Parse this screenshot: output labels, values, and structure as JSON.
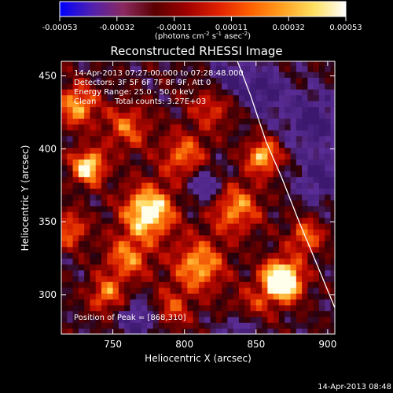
{
  "colorbar": {
    "ticks": [
      "-0.00053",
      "-0.00032",
      "-0.00011",
      "0.00011",
      "0.00032",
      "0.00053"
    ],
    "ticks_pre": "(photons cm",
    "ticks_sup1": "-2",
    "ticks_mid": " s",
    "ticks_sup2": "-1",
    "ticks_mid2": " asec",
    "ticks_sup3": "-2",
    "ticks_post": ")",
    "colors": [
      "#0000ff",
      "#5020b0",
      "#8a2a60",
      "#5a0000",
      "#a00000",
      "#e02000",
      "#ff6000",
      "#ffa020",
      "#ffe060",
      "#ffffff"
    ]
  },
  "chart_data": {
    "type": "heatmap",
    "title": "Reconstructed RHESSI Image",
    "xlabel": "Heliocentric X (arcsec)",
    "ylabel": "Heliocentric Y (arcsec)",
    "xlim": [
      714,
      905
    ],
    "ylim": [
      273,
      460
    ],
    "xticks": [
      "750",
      "800",
      "850",
      "900"
    ],
    "xtick_values": [
      750,
      800,
      850,
      900
    ],
    "yticks": [
      "300",
      "350",
      "400",
      "450"
    ],
    "ytick_values": [
      300,
      350,
      400,
      450
    ],
    "peak": [
      868,
      310
    ],
    "limb_curve": [
      [
        837,
        460
      ],
      [
        846,
        437
      ],
      [
        857,
        405
      ],
      [
        868,
        380
      ],
      [
        880,
        350
      ],
      [
        892,
        322
      ],
      [
        905,
        291
      ]
    ],
    "blobs": [
      {
        "x": 868,
        "y": 310,
        "r": 14,
        "v": 1.0
      },
      {
        "x": 775,
        "y": 357,
        "r": 18,
        "v": 0.75
      },
      {
        "x": 733,
        "y": 388,
        "r": 12,
        "v": 0.7
      },
      {
        "x": 725,
        "y": 430,
        "r": 14,
        "v": 0.55
      },
      {
        "x": 760,
        "y": 325,
        "r": 16,
        "v": 0.45
      },
      {
        "x": 810,
        "y": 320,
        "r": 18,
        "v": 0.55
      },
      {
        "x": 835,
        "y": 360,
        "r": 18,
        "v": 0.5
      },
      {
        "x": 855,
        "y": 395,
        "r": 12,
        "v": 0.6
      },
      {
        "x": 745,
        "y": 300,
        "r": 12,
        "v": 0.45
      },
      {
        "x": 800,
        "y": 395,
        "r": 16,
        "v": 0.45
      },
      {
        "x": 760,
        "y": 415,
        "r": 16,
        "v": 0.4
      },
      {
        "x": 820,
        "y": 430,
        "r": 16,
        "v": 0.35
      },
      {
        "x": 885,
        "y": 340,
        "r": 12,
        "v": 0.45
      },
      {
        "x": 790,
        "y": 290,
        "r": 14,
        "v": 0.35
      },
      {
        "x": 845,
        "y": 290,
        "r": 14,
        "v": 0.3
      },
      {
        "x": 720,
        "y": 345,
        "r": 12,
        "v": 0.45
      }
    ],
    "voids": [
      {
        "x": 770,
        "y": 283,
        "r": 14
      },
      {
        "x": 830,
        "y": 448,
        "r": 14
      },
      {
        "x": 855,
        "y": 440,
        "r": 16
      },
      {
        "x": 890,
        "y": 420,
        "r": 20
      },
      {
        "x": 895,
        "y": 380,
        "r": 16
      },
      {
        "x": 815,
        "y": 375,
        "r": 14
      },
      {
        "x": 840,
        "y": 278,
        "r": 12
      }
    ]
  },
  "annotations": {
    "time": "14-Apr-2013 07:27:00.000 to 07:28:48.000",
    "detectors": "Detectors: 3F 5F 6F 7F 8F 9F, Att 0",
    "energy": "Energy Range: 25.0 - 50.0 keV",
    "method": "Clean",
    "counts": "Total counts: 3.27E+03",
    "peak": "Position of Peak = [868,310]"
  },
  "footer": {
    "timestamp": "14-Apr-2013 08:48"
  }
}
